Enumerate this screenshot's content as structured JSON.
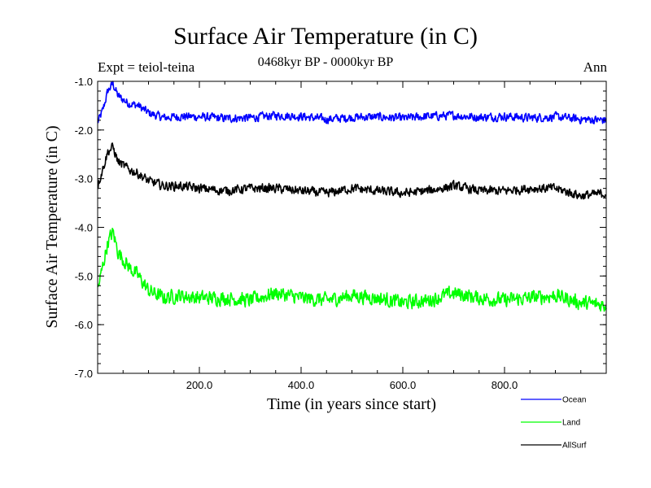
{
  "chart_data": {
    "type": "line",
    "title": "Surface Air Temperature (in C)",
    "subtitle": "0468kyr BP - 0000kyr BP",
    "experiment": "Expt = teiol-teina",
    "period": "Ann",
    "xlabel": "Time (in years since start)",
    "ylabel": "Surface Air Temperature (in C)",
    "xlim": [
      0,
      1000
    ],
    "ylim": [
      -7.0,
      -1.0
    ],
    "x_ticks": [
      200,
      400,
      600,
      800
    ],
    "x_tick_labels": [
      "200.0",
      "400.0",
      "600.0",
      "800.0"
    ],
    "y_ticks": [
      -1,
      -2,
      -3,
      -4,
      -5,
      -6,
      -7
    ],
    "y_tick_labels": [
      "-1.0",
      "-2.0",
      "-3.0",
      "-4.0",
      "-5.0",
      "-6.0",
      "-7.0"
    ],
    "grid": false,
    "legend_position": "bottom-right",
    "series": [
      {
        "name": "Ocean",
        "color": "#0000ff",
        "x": [
          0,
          10,
          20,
          30,
          40,
          60,
          80,
          100,
          130,
          160,
          200,
          250,
          300,
          350,
          400,
          450,
          500,
          550,
          600,
          650,
          700,
          750,
          800,
          850,
          900,
          950,
          1000
        ],
        "values": [
          -1.85,
          -1.6,
          -1.2,
          -1.05,
          -1.3,
          -1.45,
          -1.5,
          -1.65,
          -1.75,
          -1.72,
          -1.73,
          -1.76,
          -1.75,
          -1.7,
          -1.72,
          -1.78,
          -1.74,
          -1.73,
          -1.76,
          -1.72,
          -1.7,
          -1.74,
          -1.72,
          -1.75,
          -1.73,
          -1.78,
          -1.8
        ],
        "noise": 0.12
      },
      {
        "name": "Land",
        "color": "#00ff00",
        "x": [
          0,
          10,
          20,
          30,
          40,
          60,
          80,
          100,
          130,
          160,
          200,
          250,
          300,
          350,
          400,
          450,
          500,
          550,
          600,
          650,
          700,
          750,
          800,
          850,
          900,
          950,
          1000
        ],
        "values": [
          -5.3,
          -4.8,
          -4.3,
          -4.1,
          -4.5,
          -4.8,
          -5.0,
          -5.3,
          -5.45,
          -5.4,
          -5.45,
          -5.45,
          -5.5,
          -5.35,
          -5.45,
          -5.5,
          -5.4,
          -5.45,
          -5.55,
          -5.5,
          -5.35,
          -5.45,
          -5.5,
          -5.45,
          -5.4,
          -5.55,
          -5.6
        ],
        "noise": 0.2
      },
      {
        "name": "AllSurf",
        "color": "#000000",
        "x": [
          0,
          10,
          20,
          30,
          40,
          60,
          80,
          100,
          130,
          160,
          200,
          250,
          300,
          350,
          400,
          450,
          500,
          550,
          600,
          650,
          700,
          750,
          800,
          850,
          900,
          950,
          1000
        ],
        "values": [
          -3.15,
          -2.8,
          -2.45,
          -2.35,
          -2.65,
          -2.8,
          -2.9,
          -3.05,
          -3.15,
          -3.15,
          -3.2,
          -3.25,
          -3.2,
          -3.2,
          -3.25,
          -3.3,
          -3.2,
          -3.25,
          -3.3,
          -3.25,
          -3.15,
          -3.25,
          -3.25,
          -3.2,
          -3.2,
          -3.35,
          -3.3
        ],
        "noise": 0.13
      }
    ]
  }
}
